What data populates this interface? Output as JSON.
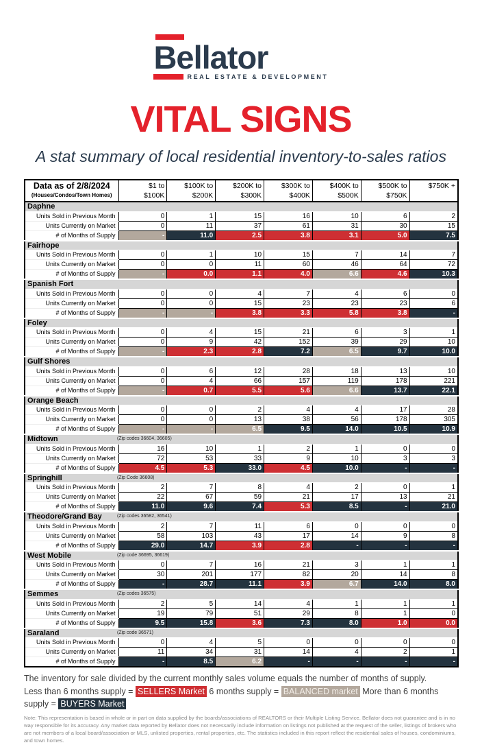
{
  "colors": {
    "sellers": "#ce2f33",
    "balanced": "#b3a89d",
    "buyers": "#24333f",
    "navy": "#2b3b4d",
    "red": "#e4212b",
    "band": "#d6d6d6"
  },
  "logo": {
    "name": "Bellator",
    "tagline": "REAL ESTATE & DEVELOPMENT"
  },
  "title": "VITAL SIGNS",
  "subtitle": "A stat summary of local residential inventory-to-sales ratios",
  "table": {
    "corner": {
      "title": "Data as of 2/8/2024",
      "subtitle": "(Houses/Condos/Town Homes)"
    },
    "columns": [
      {
        "line1": "$1 to",
        "line2": "$100K"
      },
      {
        "line1": "$100K to",
        "line2": "$200K"
      },
      {
        "line1": "$200K to",
        "line2": "$300K"
      },
      {
        "line1": "$300K to",
        "line2": "$400K"
      },
      {
        "line1": "$400K to",
        "line2": "$500K"
      },
      {
        "line1": "$500K to",
        "line2": "$750K"
      },
      {
        "line1": "$750K +",
        "line2": ""
      }
    ],
    "row_labels": {
      "sold": "Units Sold in Previous Month",
      "market": "Units Currently on Market",
      "supply": "# of Months of Supply"
    },
    "areas": [
      {
        "name": "Daphne",
        "zip": "",
        "sold": [
          "0",
          "1",
          "15",
          "16",
          "10",
          "6",
          "2"
        ],
        "market": [
          "0",
          "11",
          "37",
          "61",
          "31",
          "30",
          "15"
        ],
        "supply": [
          [
            "-",
            "balanced"
          ],
          [
            "11.0",
            "buyers"
          ],
          [
            "2.5",
            "sellers"
          ],
          [
            "3.8",
            "sellers"
          ],
          [
            "3.1",
            "sellers"
          ],
          [
            "5.0",
            "sellers"
          ],
          [
            "7.5",
            "buyers"
          ]
        ]
      },
      {
        "name": "Fairhope",
        "zip": "",
        "sold": [
          "0",
          "1",
          "10",
          "15",
          "7",
          "14",
          "7"
        ],
        "market": [
          "0",
          "0",
          "11",
          "60",
          "46",
          "64",
          "72"
        ],
        "supply": [
          [
            "-",
            "balanced"
          ],
          [
            "0.0",
            "sellers"
          ],
          [
            "1.1",
            "sellers"
          ],
          [
            "4.0",
            "sellers"
          ],
          [
            "6.6",
            "balanced"
          ],
          [
            "4.6",
            "sellers"
          ],
          [
            "10.3",
            "buyers"
          ]
        ]
      },
      {
        "name": "Spanish Fort",
        "zip": "",
        "sold": [
          "0",
          "0",
          "4",
          "7",
          "4",
          "6",
          "0"
        ],
        "market": [
          "0",
          "0",
          "15",
          "23",
          "23",
          "23",
          "6"
        ],
        "supply": [
          [
            "-",
            "balanced"
          ],
          [
            "-",
            "balanced"
          ],
          [
            "3.8",
            "sellers"
          ],
          [
            "3.3",
            "sellers"
          ],
          [
            "5.8",
            "sellers"
          ],
          [
            "3.8",
            "sellers"
          ],
          [
            "-",
            "buyers"
          ]
        ]
      },
      {
        "name": "Foley",
        "zip": "",
        "sold": [
          "0",
          "4",
          "15",
          "21",
          "6",
          "3",
          "1"
        ],
        "market": [
          "0",
          "9",
          "42",
          "152",
          "39",
          "29",
          "10"
        ],
        "supply": [
          [
            "-",
            "balanced"
          ],
          [
            "2.3",
            "sellers"
          ],
          [
            "2.8",
            "sellers"
          ],
          [
            "7.2",
            "buyers"
          ],
          [
            "6.5",
            "balanced"
          ],
          [
            "9.7",
            "buyers"
          ],
          [
            "10.0",
            "buyers"
          ]
        ]
      },
      {
        "name": "Gulf Shores",
        "zip": "",
        "sold": [
          "0",
          "6",
          "12",
          "28",
          "18",
          "13",
          "10"
        ],
        "market": [
          "0",
          "4",
          "66",
          "157",
          "119",
          "178",
          "221"
        ],
        "supply": [
          [
            "-",
            "balanced"
          ],
          [
            "0.7",
            "sellers"
          ],
          [
            "5.5",
            "sellers"
          ],
          [
            "5.6",
            "sellers"
          ],
          [
            "6.6",
            "balanced"
          ],
          [
            "13.7",
            "buyers"
          ],
          [
            "22.1",
            "buyers"
          ]
        ]
      },
      {
        "name": "Orange Beach",
        "zip": "",
        "sold": [
          "0",
          "0",
          "2",
          "4",
          "4",
          "17",
          "28"
        ],
        "market": [
          "0",
          "0",
          "13",
          "38",
          "56",
          "178",
          "305"
        ],
        "supply": [
          [
            "-",
            "balanced"
          ],
          [
            "-",
            "balanced"
          ],
          [
            "6.5",
            "balanced"
          ],
          [
            "9.5",
            "buyers"
          ],
          [
            "14.0",
            "buyers"
          ],
          [
            "10.5",
            "buyers"
          ],
          [
            "10.9",
            "buyers"
          ]
        ]
      },
      {
        "name": "Midtown",
        "zip": "(Zip codes 36604, 36605)",
        "sold": [
          "16",
          "10",
          "1",
          "2",
          "1",
          "0",
          "0"
        ],
        "market": [
          "72",
          "53",
          "33",
          "9",
          "10",
          "3",
          "3"
        ],
        "supply": [
          [
            "4.5",
            "sellers"
          ],
          [
            "5.3",
            "sellers"
          ],
          [
            "33.0",
            "buyers"
          ],
          [
            "4.5",
            "sellers"
          ],
          [
            "10.0",
            "buyers"
          ],
          [
            "-",
            "buyers"
          ],
          [
            "-",
            "buyers"
          ]
        ]
      },
      {
        "name": "Springhill",
        "zip": "(Zip Code 36608)",
        "sold": [
          "2",
          "7",
          "8",
          "4",
          "2",
          "0",
          "1"
        ],
        "market": [
          "22",
          "67",
          "59",
          "21",
          "17",
          "13",
          "21"
        ],
        "supply": [
          [
            "11.0",
            "buyers"
          ],
          [
            "9.6",
            "buyers"
          ],
          [
            "7.4",
            "buyers"
          ],
          [
            "5.3",
            "sellers"
          ],
          [
            "8.5",
            "buyers"
          ],
          [
            "-",
            "buyers"
          ],
          [
            "21.0",
            "buyers"
          ]
        ]
      },
      {
        "name": "Theodore/Grand Bay",
        "zip": "(Zip codes 36582, 36541)",
        "sold": [
          "2",
          "7",
          "11",
          "6",
          "0",
          "0",
          "0"
        ],
        "market": [
          "58",
          "103",
          "43",
          "17",
          "14",
          "9",
          "8"
        ],
        "supply": [
          [
            "29.0",
            "buyers"
          ],
          [
            "14.7",
            "buyers"
          ],
          [
            "3.9",
            "sellers"
          ],
          [
            "2.8",
            "sellers"
          ],
          [
            "-",
            "buyers"
          ],
          [
            "-",
            "buyers"
          ],
          [
            "-",
            "buyers"
          ]
        ]
      },
      {
        "name": "West Mobile",
        "zip": "(Zip code 36695, 36619)",
        "sold": [
          "0",
          "7",
          "16",
          "21",
          "3",
          "1",
          "1"
        ],
        "market": [
          "30",
          "201",
          "177",
          "82",
          "20",
          "14",
          "8"
        ],
        "supply": [
          [
            "-",
            "buyers"
          ],
          [
            "28.7",
            "buyers"
          ],
          [
            "11.1",
            "buyers"
          ],
          [
            "3.9",
            "sellers"
          ],
          [
            "6.7",
            "balanced"
          ],
          [
            "14.0",
            "buyers"
          ],
          [
            "8.0",
            "buyers"
          ]
        ]
      },
      {
        "name": "Semmes",
        "zip": "(Zip codes 36575)",
        "sold": [
          "2",
          "5",
          "14",
          "4",
          "1",
          "1",
          "1"
        ],
        "market": [
          "19",
          "79",
          "51",
          "29",
          "8",
          "1",
          "0"
        ],
        "supply": [
          [
            "9.5",
            "buyers"
          ],
          [
            "15.8",
            "buyers"
          ],
          [
            "3.6",
            "sellers"
          ],
          [
            "7.3",
            "buyers"
          ],
          [
            "8.0",
            "buyers"
          ],
          [
            "1.0",
            "sellers"
          ],
          [
            "0.0",
            "sellers"
          ]
        ]
      },
      {
        "name": "Saraland",
        "zip": "(Zip code 36571)",
        "sold": [
          "0",
          "4",
          "5",
          "0",
          "0",
          "0",
          "0"
        ],
        "market": [
          "11",
          "34",
          "31",
          "14",
          "4",
          "2",
          "1"
        ],
        "supply": [
          [
            "-",
            "buyers"
          ],
          [
            "8.5",
            "buyers"
          ],
          [
            "6.2",
            "balanced"
          ],
          [
            "-",
            "buyers"
          ],
          [
            "-",
            "buyers"
          ],
          [
            "-",
            "buyers"
          ],
          [
            "-",
            "buyers"
          ]
        ]
      }
    ]
  },
  "legend": {
    "line1": "The inventory for sale divided by the current monthly sales volume equals the number of months of supply.",
    "sellers_prefix": "Less than 6 months supply =",
    "sellers_chip": "SELLERS Market",
    "balanced_prefix": "6 months supply =",
    "balanced_chip": "BALANCED market",
    "buyers_prefix": "More than 6 months supply =",
    "buyers_chip": "BUYERS Market"
  },
  "note": "Note: This representation is based in whole or in part on data supplied by the boards/associations of REALTORS or their Multiple Listing Service. Bellator does not guarantee and is in no way responsible for its accuracy. Any market data reported by Bellator does not necessarily include information on listings not published at the request of the seller, listings of brokers who are not members of a local board/association or MLS, unlisted properties, rental properties, etc. The statistics included in this report reflect the residential sales of houses, condominiums, and town homes."
}
